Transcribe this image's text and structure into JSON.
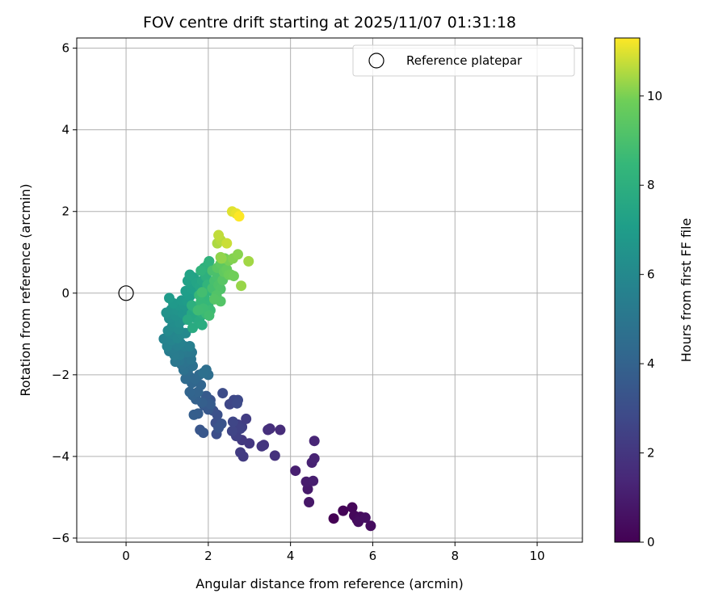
{
  "chart_data": {
    "type": "scatter",
    "title": "FOV centre drift starting at 2025/11/07 01:31:18",
    "xlabel": "Angular distance from reference (arcmin)",
    "ylabel": "Rotation from reference (arcmin)",
    "xlim": [
      -1.2,
      11.1
    ],
    "ylim": [
      -6.1,
      6.25
    ],
    "xticks": [
      0,
      2,
      4,
      6,
      8,
      10
    ],
    "yticks": [
      -6,
      -4,
      -2,
      0,
      2,
      4,
      6
    ],
    "xtick_labels": [
      "0",
      "2",
      "4",
      "6",
      "8",
      "10"
    ],
    "ytick_labels": [
      "−6",
      "−4",
      "−2",
      "0",
      "2",
      "4",
      "6"
    ],
    "grid": true,
    "legend": {
      "position": "top-right",
      "entries": [
        "Reference platepar"
      ]
    },
    "reference_point": {
      "x": 0,
      "y": 0,
      "marker": "open-circle"
    },
    "colorbar": {
      "label": "Hours from first FF file",
      "range": [
        0,
        11.3
      ],
      "ticks": [
        0,
        2,
        4,
        6,
        8,
        10
      ],
      "tick_labels": [
        "0",
        "2",
        "4",
        "6",
        "8",
        "10"
      ],
      "colormap": "viridis"
    },
    "points": [
      [
        5.05,
        -5.52,
        0.0
      ],
      [
        5.28,
        -5.33,
        0.1
      ],
      [
        5.5,
        -5.25,
        0.2
      ],
      [
        5.55,
        -5.45,
        0.25
      ],
      [
        5.62,
        -5.55,
        0.3
      ],
      [
        5.7,
        -5.48,
        0.35
      ],
      [
        5.95,
        -5.7,
        0.4
      ],
      [
        5.65,
        -5.6,
        0.45
      ],
      [
        5.82,
        -5.5,
        0.5
      ],
      [
        4.45,
        -5.12,
        0.8
      ],
      [
        4.42,
        -4.8,
        0.9
      ],
      [
        4.38,
        -4.62,
        1.0
      ],
      [
        4.55,
        -4.6,
        1.05
      ],
      [
        4.12,
        -4.35,
        1.1
      ],
      [
        4.52,
        -4.15,
        1.2
      ],
      [
        4.58,
        -4.05,
        1.25
      ],
      [
        4.58,
        -3.62,
        1.35
      ],
      [
        3.75,
        -3.35,
        1.6
      ],
      [
        3.5,
        -3.32,
        1.7
      ],
      [
        3.45,
        -3.35,
        1.75
      ],
      [
        3.62,
        -3.98,
        1.8
      ],
      [
        3.35,
        -3.72,
        1.9
      ],
      [
        3.3,
        -3.75,
        2.0
      ],
      [
        3.0,
        -3.68,
        2.05
      ],
      [
        2.82,
        -3.6,
        2.1
      ],
      [
        2.85,
        -4.0,
        2.2
      ],
      [
        2.78,
        -3.9,
        2.25
      ],
      [
        2.92,
        -3.08,
        2.3
      ],
      [
        2.82,
        -3.28,
        2.35
      ],
      [
        2.72,
        -3.22,
        2.4
      ],
      [
        2.68,
        -3.5,
        2.45
      ],
      [
        2.78,
        -3.32,
        2.5
      ],
      [
        2.58,
        -3.38,
        2.6
      ],
      [
        2.6,
        -3.15,
        2.65
      ],
      [
        2.52,
        -2.72,
        2.7
      ],
      [
        2.62,
        -2.62,
        2.75
      ],
      [
        2.72,
        -2.62,
        2.8
      ],
      [
        2.7,
        -2.7,
        2.85
      ],
      [
        2.35,
        -2.45,
        2.9
      ],
      [
        2.2,
        -3.45,
        3.0
      ],
      [
        2.18,
        -3.18,
        3.05
      ],
      [
        2.22,
        -2.98,
        3.1
      ],
      [
        2.12,
        -2.88,
        3.15
      ],
      [
        2.05,
        -2.62,
        3.2
      ],
      [
        2.32,
        -3.2,
        3.25
      ],
      [
        2.25,
        -3.3,
        3.3
      ],
      [
        1.8,
        -3.35,
        3.4
      ],
      [
        1.88,
        -3.42,
        3.45
      ],
      [
        2.0,
        -2.85,
        3.5
      ],
      [
        1.9,
        -2.75,
        3.55
      ],
      [
        1.95,
        -2.52,
        3.6
      ],
      [
        2.05,
        -2.72,
        3.65
      ],
      [
        1.75,
        -2.95,
        3.7
      ],
      [
        1.65,
        -2.98,
        3.75
      ],
      [
        1.85,
        -2.68,
        3.8
      ],
      [
        1.7,
        -2.6,
        3.9
      ],
      [
        1.62,
        -2.5,
        4.0
      ],
      [
        1.75,
        -2.42,
        4.05
      ],
      [
        1.55,
        -2.42,
        4.1
      ],
      [
        1.82,
        -2.25,
        4.15
      ],
      [
        1.6,
        -2.2,
        4.2
      ],
      [
        1.55,
        -2.05,
        4.25
      ],
      [
        1.68,
        -2.1,
        4.3
      ],
      [
        1.78,
        -2.0,
        4.35
      ],
      [
        1.45,
        -2.1,
        4.4
      ],
      [
        1.5,
        -1.9,
        4.5
      ],
      [
        2.0,
        -2.0,
        4.55
      ],
      [
        1.95,
        -1.88,
        4.6
      ],
      [
        1.88,
        -1.95,
        4.65
      ],
      [
        1.4,
        -1.88,
        4.7
      ],
      [
        1.62,
        -1.78,
        4.75
      ],
      [
        1.35,
        -1.75,
        4.8
      ],
      [
        1.45,
        -1.68,
        4.85
      ],
      [
        1.52,
        -1.55,
        4.9
      ],
      [
        1.58,
        -1.62,
        4.95
      ],
      [
        1.3,
        -1.65,
        5.0
      ],
      [
        1.2,
        -1.68,
        5.05
      ],
      [
        1.6,
        -1.45,
        5.1
      ],
      [
        1.48,
        -1.45,
        5.15
      ],
      [
        1.38,
        -1.4,
        5.2
      ],
      [
        1.3,
        -1.52,
        5.25
      ],
      [
        1.18,
        -1.52,
        5.3
      ],
      [
        1.05,
        -1.42,
        5.35
      ],
      [
        1.15,
        -1.35,
        5.4
      ],
      [
        1.42,
        -1.3,
        5.45
      ],
      [
        1.55,
        -1.3,
        5.5
      ],
      [
        1.25,
        -1.28,
        5.55
      ],
      [
        1.32,
        -1.22,
        5.6
      ],
      [
        1.0,
        -1.3,
        5.65
      ],
      [
        0.92,
        -1.12,
        5.7
      ],
      [
        1.1,
        -1.15,
        5.75
      ],
      [
        1.2,
        -1.05,
        5.8
      ],
      [
        1.08,
        -1.0,
        5.85
      ],
      [
        1.25,
        -1.1,
        5.9
      ],
      [
        1.35,
        -1.0,
        5.95
      ],
      [
        1.45,
        -0.98,
        6.0
      ],
      [
        1.02,
        -0.92,
        6.05
      ],
      [
        1.12,
        -0.82,
        6.1
      ],
      [
        1.28,
        -0.88,
        6.15
      ],
      [
        1.15,
        -0.72,
        6.2
      ],
      [
        1.05,
        -0.62,
        6.25
      ],
      [
        1.3,
        -0.72,
        6.3
      ],
      [
        1.4,
        -0.65,
        6.35
      ],
      [
        1.2,
        -0.55,
        6.4
      ],
      [
        0.98,
        -0.48,
        6.45
      ],
      [
        1.1,
        -0.4,
        6.5
      ],
      [
        1.25,
        -0.42,
        6.55
      ],
      [
        1.38,
        -0.5,
        6.6
      ],
      [
        1.5,
        -0.45,
        6.65
      ],
      [
        1.28,
        -0.3,
        6.7
      ],
      [
        1.42,
        -0.3,
        6.75
      ],
      [
        1.15,
        -0.25,
        6.8
      ],
      [
        1.35,
        -0.18,
        6.85
      ],
      [
        1.05,
        -0.12,
        6.9
      ],
      [
        1.5,
        -0.2,
        6.95
      ],
      [
        1.55,
        -0.08,
        7.0
      ],
      [
        1.45,
        0.05,
        7.05
      ],
      [
        1.6,
        0.1,
        7.1
      ],
      [
        1.7,
        0.05,
        7.15
      ],
      [
        1.58,
        0.22,
        7.2
      ],
      [
        1.5,
        0.3,
        7.25
      ],
      [
        1.65,
        0.38,
        7.3
      ],
      [
        1.55,
        0.45,
        7.35
      ],
      [
        1.72,
        0.25,
        7.4
      ],
      [
        1.8,
        0.15,
        7.45
      ],
      [
        1.9,
        0.05,
        7.5
      ],
      [
        1.85,
        0.3,
        7.55
      ],
      [
        1.6,
        -0.5,
        7.6
      ],
      [
        1.68,
        -0.6,
        7.65
      ],
      [
        1.5,
        -0.65,
        7.7
      ],
      [
        1.62,
        -0.85,
        7.75
      ],
      [
        1.78,
        -0.68,
        7.8
      ],
      [
        1.85,
        -0.78,
        7.85
      ],
      [
        1.7,
        -0.38,
        7.9
      ],
      [
        1.88,
        -0.52,
        7.95
      ],
      [
        1.6,
        -0.3,
        8.0
      ],
      [
        1.95,
        0.4,
        8.05
      ],
      [
        1.9,
        0.62,
        8.1
      ],
      [
        2.0,
        0.72,
        8.15
      ],
      [
        2.02,
        0.78,
        8.2
      ],
      [
        1.82,
        0.55,
        8.25
      ],
      [
        1.98,
        0.2,
        8.3
      ],
      [
        2.05,
        0.05,
        8.35
      ],
      [
        1.92,
        -0.15,
        8.4
      ],
      [
        2.0,
        -0.3,
        8.45
      ],
      [
        1.82,
        -0.22,
        8.5
      ],
      [
        1.78,
        -0.05,
        8.55
      ],
      [
        1.95,
        -0.5,
        8.6
      ],
      [
        2.05,
        -0.42,
        8.65
      ],
      [
        1.88,
        -0.38,
        8.7
      ],
      [
        1.75,
        -0.42,
        8.75
      ],
      [
        2.02,
        -0.55,
        8.8
      ],
      [
        1.85,
        0.02,
        8.85
      ],
      [
        2.1,
        0.12,
        8.9
      ],
      [
        2.15,
        0.3,
        8.95
      ],
      [
        2.22,
        0.42,
        9.0
      ],
      [
        2.1,
        0.55,
        9.05
      ],
      [
        2.25,
        0.2,
        9.1
      ],
      [
        2.3,
        0.1,
        9.15
      ],
      [
        2.2,
        -0.05,
        9.2
      ],
      [
        2.3,
        -0.2,
        9.25
      ],
      [
        2.15,
        -0.15,
        9.3
      ],
      [
        2.35,
        0.32,
        9.35
      ],
      [
        2.22,
        0.62,
        9.4
      ],
      [
        2.3,
        0.72,
        9.5
      ],
      [
        2.38,
        0.52,
        9.6
      ],
      [
        2.45,
        0.58,
        9.7
      ],
      [
        2.5,
        0.45,
        9.8
      ],
      [
        2.55,
        0.45,
        9.85
      ],
      [
        2.62,
        0.42,
        9.9
      ],
      [
        2.4,
        0.85,
        9.95
      ],
      [
        2.5,
        0.8,
        10.0
      ],
      [
        2.6,
        0.85,
        10.1
      ],
      [
        2.72,
        0.95,
        10.15
      ],
      [
        2.3,
        0.88,
        10.2
      ],
      [
        2.32,
        0.85,
        10.25
      ],
      [
        2.8,
        0.18,
        10.3
      ],
      [
        2.98,
        0.78,
        10.4
      ],
      [
        2.22,
        1.22,
        10.5
      ],
      [
        2.3,
        1.3,
        10.6
      ],
      [
        2.25,
        1.42,
        10.7
      ],
      [
        2.45,
        1.22,
        10.8
      ],
      [
        2.58,
        2.0,
        11.0
      ],
      [
        2.68,
        1.95,
        11.1
      ],
      [
        2.75,
        1.88,
        11.3
      ]
    ]
  }
}
